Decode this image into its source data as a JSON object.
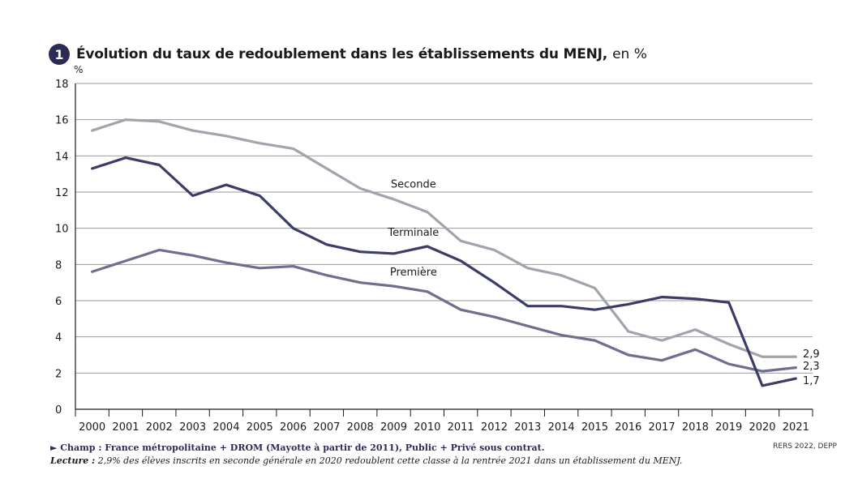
{
  "header": {
    "badge": "1",
    "title": "Évolution du taux de redoublement dans les établissements du MENJ,",
    "unit_suffix": "en %"
  },
  "chart_data": {
    "type": "line",
    "title": "Évolution du taux de redoublement dans les établissements du MENJ, en %",
    "ylabel": "%",
    "xlabel": "",
    "ylim": [
      0,
      18
    ],
    "yticks": [
      0,
      2,
      4,
      6,
      8,
      10,
      12,
      14,
      16,
      18
    ],
    "grid": true,
    "x": [
      "2000",
      "2001",
      "2002",
      "2003",
      "2004",
      "2005",
      "2006",
      "2007",
      "2008",
      "2009",
      "2010",
      "2011",
      "2012",
      "2013",
      "2014",
      "2015",
      "2016",
      "2017",
      "2018",
      "2019",
      "2020",
      "2021"
    ],
    "series": [
      {
        "name": "Seconde",
        "color": "#a3a3ad",
        "values": [
          15.4,
          16.0,
          15.9,
          15.4,
          15.1,
          14.7,
          14.4,
          13.3,
          12.2,
          11.6,
          10.9,
          9.3,
          8.8,
          7.8,
          7.4,
          6.7,
          4.3,
          3.8,
          4.4,
          3.6,
          2.9,
          2.9
        ],
        "end_label": "2,9"
      },
      {
        "name": "Terminale",
        "color": "#3b3d66",
        "values": [
          13.3,
          13.9,
          13.5,
          11.8,
          12.4,
          11.8,
          10.0,
          9.1,
          8.7,
          8.6,
          9.0,
          8.2,
          7.0,
          5.7,
          5.7,
          5.5,
          5.8,
          6.2,
          6.1,
          5.9,
          1.3,
          1.7
        ],
        "end_label": "1,7"
      },
      {
        "name": "Première",
        "color": "#6e6f8c",
        "values": [
          7.6,
          8.2,
          8.8,
          8.5,
          8.1,
          7.8,
          7.9,
          7.4,
          7.0,
          6.8,
          6.5,
          5.5,
          5.1,
          4.6,
          4.1,
          3.8,
          3.0,
          2.7,
          3.3,
          2.5,
          2.1,
          2.3
        ],
        "end_label": "2,3"
      }
    ]
  },
  "footer": {
    "champ": "► Champ : France métropolitaine + DROM (Mayotte à partir de 2011), Public + Privé sous contrat.",
    "lecture_label": "Lecture :",
    "lecture_text": "2,9% des élèves inscrits en seconde générale en 2020 redoublent cette classe à la rentrée 2021 dans un établissement du MENJ.",
    "source": "RERS 2022, DEPP"
  }
}
